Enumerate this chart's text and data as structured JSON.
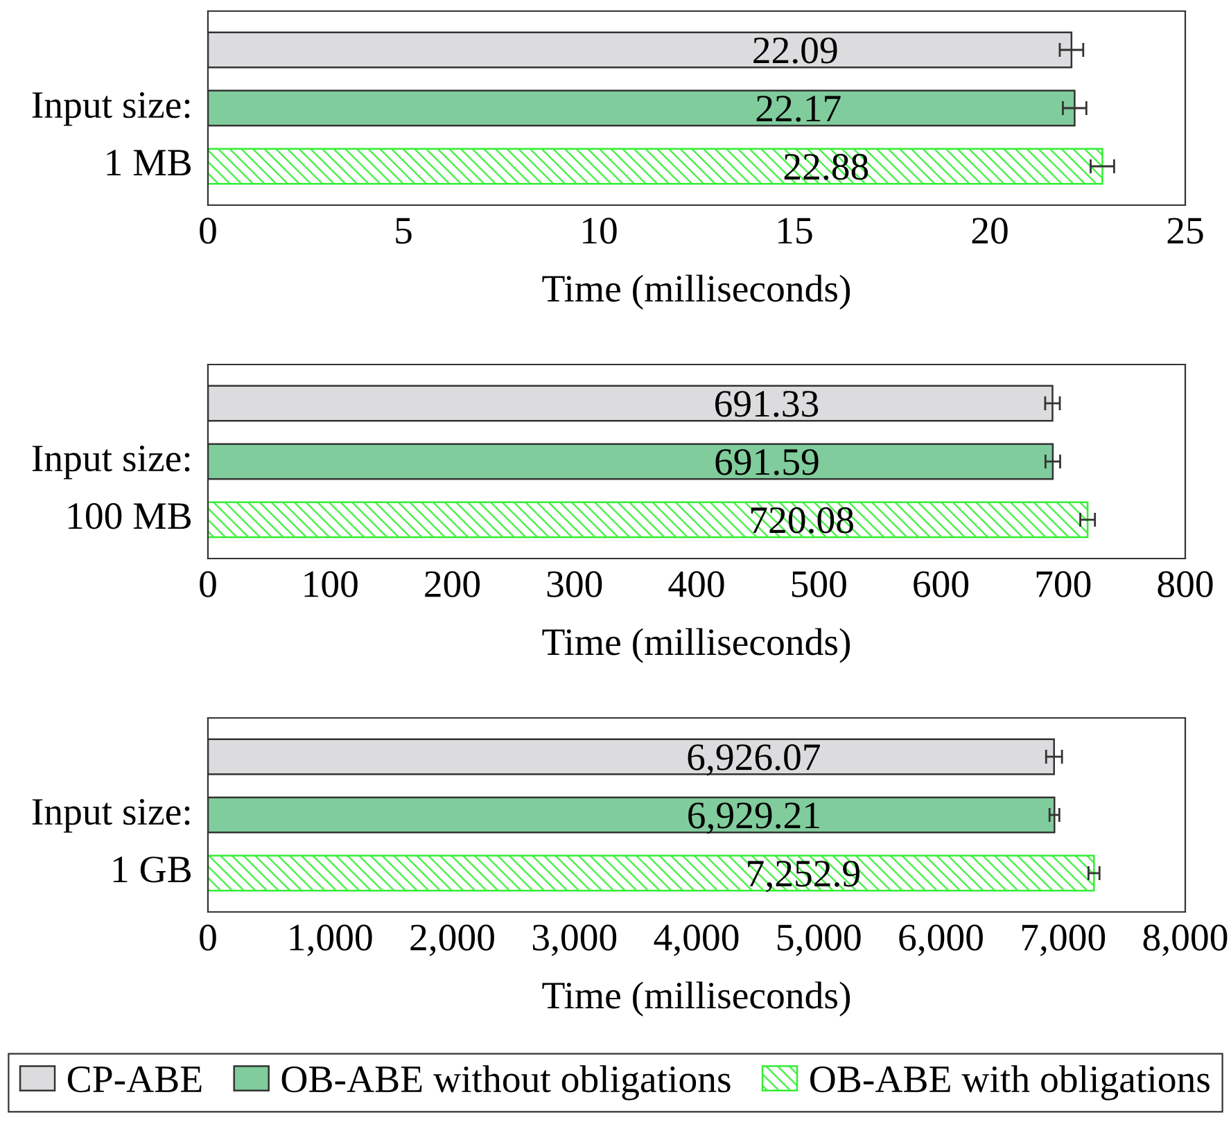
{
  "chart_data": [
    {
      "type": "bar",
      "orientation": "horizontal",
      "categories": [
        "Input size:\n1 MB"
      ],
      "xlabel": "Time (milliseconds)",
      "xlim": [
        0,
        25
      ],
      "xticks": [
        0,
        5,
        10,
        15,
        20,
        25
      ],
      "legend": "bottom",
      "series": [
        {
          "name": "CP-ABE",
          "color": "#dcdcde",
          "values": [
            22.09
          ],
          "errors": [
            0.3
          ],
          "value_labels": [
            "22.09"
          ]
        },
        {
          "name": "OB-ABE without obligations",
          "color": "#80cc9c",
          "values": [
            22.17
          ],
          "errors": [
            0.3
          ],
          "value_labels": [
            "22.17"
          ]
        },
        {
          "name": "OB-ABE with obligations",
          "color": "#33ee33",
          "values": [
            22.88
          ],
          "errors": [
            0.3
          ],
          "value_labels": [
            "22.88"
          ]
        }
      ]
    },
    {
      "type": "bar",
      "orientation": "horizontal",
      "categories": [
        "Input size:\n100 MB"
      ],
      "xlabel": "Time (milliseconds)",
      "xlim": [
        0,
        800
      ],
      "xticks": [
        0,
        100,
        200,
        300,
        400,
        500,
        600,
        700,
        800
      ],
      "series": [
        {
          "color": "#dcdcde",
          "values": [
            691.33
          ],
          "errors": [
            6
          ],
          "value_labels": [
            "691.33"
          ]
        },
        {
          "color": "#80cc9c",
          "values": [
            691.59
          ],
          "errors": [
            6
          ],
          "value_labels": [
            "691.59"
          ]
        },
        {
          "color": "#33ee33",
          "values": [
            720.08
          ],
          "errors": [
            6
          ],
          "value_labels": [
            "720.08"
          ]
        }
      ]
    },
    {
      "type": "bar",
      "orientation": "horizontal",
      "categories": [
        "Input size:\n1 GB"
      ],
      "xlabel": "Time (milliseconds)",
      "xlim": [
        0,
        8000
      ],
      "xticks": [
        0,
        {
          "value": 1000,
          "label": "1,000"
        },
        {
          "value": 2000,
          "label": "2,000"
        },
        {
          "value": 3000,
          "label": "3,000"
        },
        {
          "value": 4000,
          "label": "4,000"
        },
        {
          "value": 5000,
          "label": "5,000"
        },
        {
          "value": 6000,
          "label": "6,000"
        },
        {
          "value": 7000,
          "label": "7,000"
        },
        {
          "value": 8000,
          "label": "8,000"
        }
      ],
      "series": [
        {
          "color": "#dcdcde",
          "values": [
            6926.07
          ],
          "errors": [
            65
          ],
          "value_labels": [
            "6,926.07"
          ]
        },
        {
          "color": "#80cc9c",
          "values": [
            6929.21
          ],
          "errors": [
            40
          ],
          "value_labels": [
            "6,929.21"
          ]
        },
        {
          "color": "#33ee33",
          "values": [
            7252.9
          ],
          "errors": [
            45
          ],
          "value_labels": [
            "7,252.9"
          ]
        }
      ]
    }
  ]
}
